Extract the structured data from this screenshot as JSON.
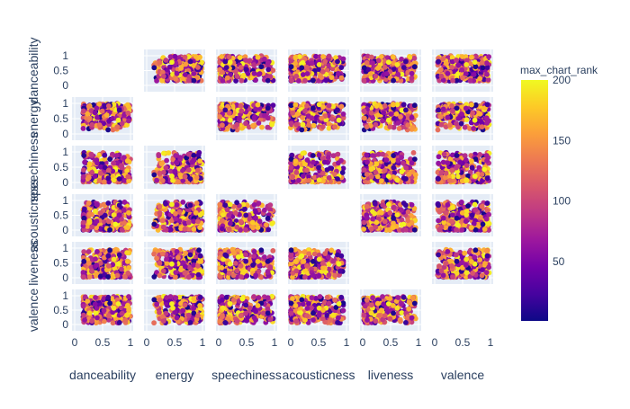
{
  "chart_data": {
    "type": "scatter",
    "subtype": "scatter_matrix",
    "dimensions": [
      "danceability",
      "energy",
      "speechiness",
      "acousticness",
      "liveness",
      "valence"
    ],
    "diagonal_visible": false,
    "upper_triangle_visible": true,
    "axis_range": [
      0,
      1
    ],
    "tick_values": [
      0,
      0.5,
      1
    ],
    "tick_labels": [
      "0",
      "0.5",
      "1"
    ],
    "color": {
      "title": "max_chart_rank",
      "range": [
        1,
        200
      ],
      "tick_values": [
        50,
        100,
        150,
        200
      ],
      "tick_labels": [
        "50",
        "100",
        "150",
        "200"
      ],
      "colorscale": [
        "#0d0887",
        "#46039f",
        "#7201a8",
        "#9c179e",
        "#bd3786",
        "#d8576b",
        "#ed7953",
        "#fb9f3a",
        "#fdca26",
        "#f0f921"
      ]
    },
    "points_per_panel": 260,
    "grid": true,
    "plot_background": "#e5ecf6",
    "legend": "colorbar-right",
    "variable_ranges": {
      "danceability": [
        0.15,
        1.0
      ],
      "energy": [
        0.1,
        1.0
      ],
      "speechiness": [
        0.02,
        0.98
      ],
      "acousticness": [
        0.0,
        0.95
      ],
      "liveness": [
        0.02,
        0.95
      ],
      "valence": [
        0.05,
        0.98
      ]
    }
  }
}
